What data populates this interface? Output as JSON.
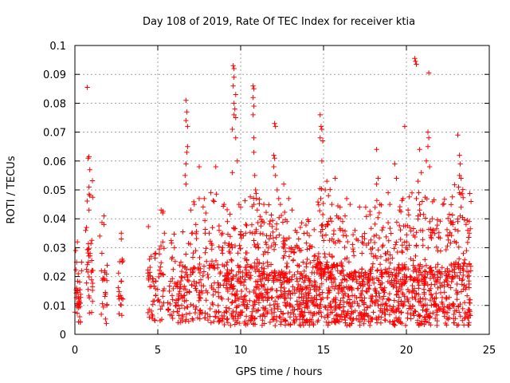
{
  "chart_data": {
    "type": "scatter",
    "title": "Day 108 of 2019, Rate Of TEC Index for receiver ktia",
    "xlabel": "GPS time / hours",
    "ylabel": "ROTI / TECUs",
    "xlim": [
      0,
      25
    ],
    "ylim": [
      0,
      0.1
    ],
    "xticks": [
      0,
      5,
      10,
      15,
      20,
      25
    ],
    "xtick_labels": [
      "0",
      "5",
      "10",
      "15",
      "20",
      "25"
    ],
    "yticks": [
      0,
      0.01,
      0.02,
      0.03,
      0.04,
      0.05,
      0.06,
      0.07,
      0.08,
      0.09,
      0.1
    ],
    "ytick_labels": [
      "0",
      "0.01",
      "0.02",
      "0.03",
      "0.04",
      "0.05",
      "0.06",
      "0.07",
      "0.08",
      "0.09",
      "0.1"
    ],
    "grid": true,
    "marker": "plus",
    "color": "#ff0000",
    "series": [
      {
        "name": "ROTI",
        "clusters": [
          {
            "range": [
              0.0,
              0.35
            ],
            "n": 30,
            "ymin": 0.004,
            "ymax": 0.033
          },
          {
            "range": [
              0.7,
              1.15
            ],
            "n": 34,
            "ymin": 0.004,
            "ymax": 0.062
          },
          {
            "range": [
              1.5,
              1.95
            ],
            "n": 20,
            "ymin": 0.003,
            "ymax": 0.042
          },
          {
            "range": [
              2.6,
              2.9
            ],
            "n": 18,
            "ymin": 0.006,
            "ymax": 0.035
          },
          {
            "range": [
              4.4,
              5.4
            ],
            "n": 60,
            "ymin": 0.004,
            "ymax": 0.043
          },
          {
            "range": [
              5.6,
              6.4
            ],
            "n": 50,
            "ymin": 0.004,
            "ymax": 0.035
          },
          {
            "range": [
              6.4,
              7.4
            ],
            "n": 75,
            "ymin": 0.004,
            "ymax": 0.048
          },
          {
            "range": [
              7.4,
              9.0
            ],
            "n": 110,
            "ymin": 0.004,
            "ymax": 0.05
          },
          {
            "range": [
              9.0,
              10.2
            ],
            "n": 130,
            "ymin": 0.003,
            "ymax": 0.045
          },
          {
            "range": [
              10.2,
              11.5
            ],
            "n": 150,
            "ymin": 0.003,
            "ymax": 0.05
          },
          {
            "range": [
              11.5,
              13.0
            ],
            "n": 170,
            "ymin": 0.003,
            "ymax": 0.045
          },
          {
            "range": [
              13.0,
              14.5
            ],
            "n": 170,
            "ymin": 0.003,
            "ymax": 0.04
          },
          {
            "range": [
              14.5,
              16.2
            ],
            "n": 220,
            "ymin": 0.003,
            "ymax": 0.052
          },
          {
            "range": [
              16.2,
              17.8
            ],
            "n": 170,
            "ymin": 0.003,
            "ymax": 0.045
          },
          {
            "range": [
              17.8,
              19.5
            ],
            "n": 180,
            "ymin": 0.003,
            "ymax": 0.048
          },
          {
            "range": [
              19.5,
              21.0
            ],
            "n": 170,
            "ymin": 0.003,
            "ymax": 0.05
          },
          {
            "range": [
              21.0,
              22.5
            ],
            "n": 170,
            "ymin": 0.003,
            "ymax": 0.048
          },
          {
            "range": [
              22.5,
              23.9
            ],
            "n": 150,
            "ymin": 0.003,
            "ymax": 0.052
          }
        ],
        "points": [
          [
            0.05,
            0.029
          ],
          [
            0.1,
            0.025
          ],
          [
            0.15,
            0.032
          ],
          [
            0.2,
            0.021
          ],
          [
            0.4,
            0.025
          ],
          [
            0.4,
            0.022
          ],
          [
            0.75,
            0.0855
          ],
          [
            0.85,
            0.0615
          ],
          [
            0.8,
            0.061
          ],
          [
            0.9,
            0.057
          ],
          [
            0.85,
            0.051
          ],
          [
            0.9,
            0.048
          ],
          [
            0.85,
            0.043
          ],
          [
            0.7,
            0.037
          ],
          [
            0.65,
            0.036
          ],
          [
            1.5,
            0.034
          ],
          [
            1.6,
            0.022
          ],
          [
            1.75,
            0.041
          ],
          [
            1.75,
            0.038
          ],
          [
            1.8,
            0.022
          ],
          [
            2.8,
            0.035
          ],
          [
            2.8,
            0.033
          ],
          [
            2.85,
            0.026
          ],
          [
            4.6,
            0.027
          ],
          [
            4.5,
            0.026
          ],
          [
            5.2,
            0.043
          ],
          [
            5.3,
            0.042
          ],
          [
            5.4,
            0.035
          ],
          [
            5.3,
            0.032
          ],
          [
            6.0,
            0.03
          ],
          [
            6.2,
            0.018
          ],
          [
            6.7,
            0.081
          ],
          [
            6.75,
            0.077
          ],
          [
            6.7,
            0.074
          ],
          [
            6.8,
            0.072
          ],
          [
            6.8,
            0.065
          ],
          [
            6.75,
            0.063
          ],
          [
            6.7,
            0.059
          ],
          [
            6.65,
            0.055
          ],
          [
            6.7,
            0.052
          ],
          [
            7.0,
            0.043
          ],
          [
            7.2,
            0.045
          ],
          [
            7.3,
            0.038
          ],
          [
            7.5,
            0.058
          ],
          [
            7.5,
            0.047
          ],
          [
            7.9,
            0.042
          ],
          [
            8.1,
            0.035
          ],
          [
            8.2,
            0.049
          ],
          [
            8.4,
            0.046
          ],
          [
            8.5,
            0.058
          ],
          [
            8.7,
            0.036
          ],
          [
            8.9,
            0.035
          ],
          [
            9.0,
            0.045
          ],
          [
            9.2,
            0.039
          ],
          [
            9.55,
            0.093
          ],
          [
            9.6,
            0.092
          ],
          [
            9.6,
            0.089
          ],
          [
            9.55,
            0.086
          ],
          [
            9.7,
            0.083
          ],
          [
            9.6,
            0.08
          ],
          [
            9.65,
            0.078
          ],
          [
            9.6,
            0.076
          ],
          [
            9.7,
            0.075
          ],
          [
            9.5,
            0.071
          ],
          [
            9.7,
            0.068
          ],
          [
            9.5,
            0.056
          ],
          [
            9.8,
            0.06
          ],
          [
            9.9,
            0.045
          ],
          [
            10.0,
            0.044
          ],
          [
            10.3,
            0.035
          ],
          [
            10.75,
            0.086
          ],
          [
            10.8,
            0.085
          ],
          [
            10.75,
            0.082
          ],
          [
            10.8,
            0.079
          ],
          [
            10.75,
            0.076
          ],
          [
            10.8,
            0.068
          ],
          [
            10.8,
            0.063
          ],
          [
            10.85,
            0.055
          ],
          [
            10.9,
            0.05
          ],
          [
            10.95,
            0.047
          ],
          [
            10.8,
            0.045
          ],
          [
            11.0,
            0.043
          ],
          [
            11.3,
            0.039
          ],
          [
            11.4,
            0.045
          ],
          [
            12.05,
            0.073
          ],
          [
            12.1,
            0.072
          ],
          [
            12.0,
            0.062
          ],
          [
            12.05,
            0.061
          ],
          [
            12.0,
            0.058
          ],
          [
            12.1,
            0.055
          ],
          [
            12.2,
            0.05
          ],
          [
            12.3,
            0.047
          ],
          [
            12.4,
            0.045
          ],
          [
            12.6,
            0.052
          ],
          [
            12.9,
            0.047
          ],
          [
            13.1,
            0.043
          ],
          [
            13.3,
            0.036
          ],
          [
            13.5,
            0.033
          ],
          [
            14.8,
            0.076
          ],
          [
            14.85,
            0.072
          ],
          [
            14.9,
            0.071
          ],
          [
            14.8,
            0.068
          ],
          [
            14.95,
            0.067
          ],
          [
            14.9,
            0.06
          ],
          [
            15.1,
            0.05
          ],
          [
            15.2,
            0.053
          ],
          [
            15.3,
            0.048
          ],
          [
            15.5,
            0.045
          ],
          [
            15.7,
            0.054
          ],
          [
            15.8,
            0.041
          ],
          [
            16.0,
            0.044
          ],
          [
            16.3,
            0.041
          ],
          [
            16.4,
            0.047
          ],
          [
            16.6,
            0.045
          ],
          [
            16.9,
            0.036
          ],
          [
            18.2,
            0.064
          ],
          [
            18.3,
            0.054
          ],
          [
            18.2,
            0.052
          ],
          [
            18.4,
            0.045
          ],
          [
            18.6,
            0.037
          ],
          [
            18.9,
            0.049
          ],
          [
            19.0,
            0.045
          ],
          [
            19.3,
            0.059
          ],
          [
            19.4,
            0.054
          ],
          [
            19.6,
            0.043
          ],
          [
            19.8,
            0.047
          ],
          [
            19.9,
            0.072
          ],
          [
            20.1,
            0.043
          ],
          [
            20.2,
            0.037
          ],
          [
            20.5,
            0.0955
          ],
          [
            20.55,
            0.0945
          ],
          [
            20.6,
            0.0935
          ],
          [
            20.8,
            0.064
          ],
          [
            20.9,
            0.056
          ],
          [
            20.7,
            0.053
          ],
          [
            20.75,
            0.049
          ],
          [
            20.6,
            0.047
          ],
          [
            20.8,
            0.043
          ],
          [
            20.7,
            0.041
          ],
          [
            21.2,
            0.06
          ],
          [
            21.3,
            0.07
          ],
          [
            21.35,
            0.068
          ],
          [
            21.3,
            0.065
          ],
          [
            21.35,
            0.0905
          ],
          [
            21.4,
            0.058
          ],
          [
            21.6,
            0.036
          ],
          [
            22.2,
            0.045
          ],
          [
            22.5,
            0.034
          ],
          [
            22.8,
            0.038
          ],
          [
            23.1,
            0.069
          ],
          [
            23.2,
            0.062
          ],
          [
            23.25,
            0.059
          ],
          [
            23.2,
            0.055
          ],
          [
            23.3,
            0.054
          ],
          [
            23.15,
            0.051
          ],
          [
            23.2,
            0.049
          ],
          [
            23.3,
            0.044
          ],
          [
            23.25,
            0.041
          ],
          [
            23.1,
            0.039
          ],
          [
            23.9,
            0.046
          ],
          [
            23.7,
            0.036
          ],
          [
            23.8,
            0.035
          ]
        ]
      }
    ]
  }
}
